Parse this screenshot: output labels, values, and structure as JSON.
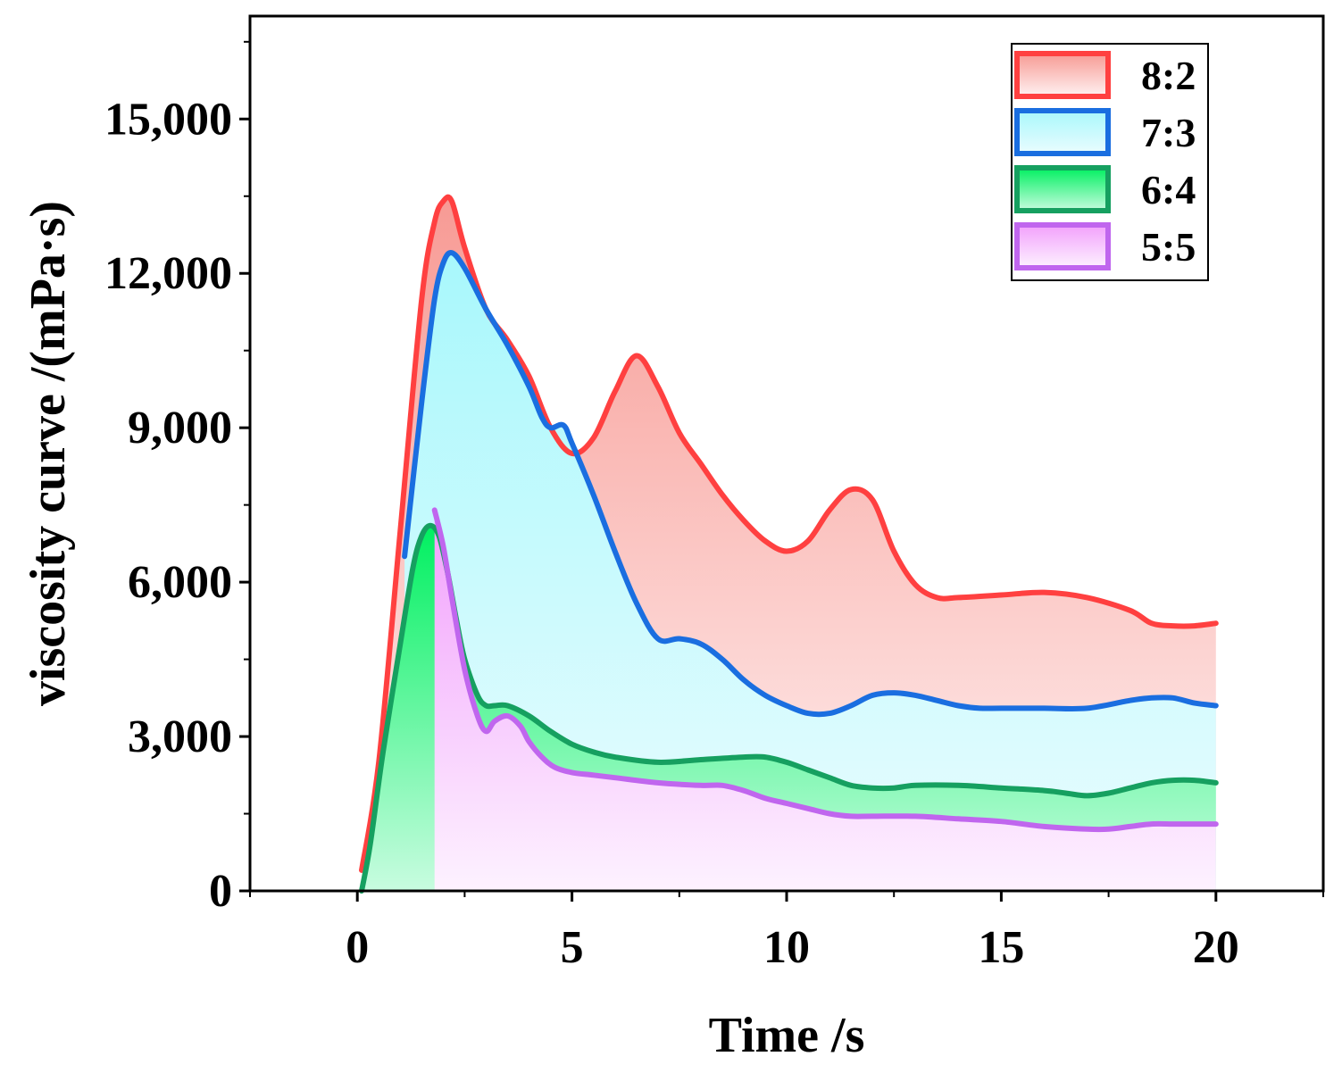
{
  "chart_data": {
    "type": "area",
    "title": "",
    "xlabel": "Time /s",
    "ylabel": "viscosity curve  /(mPa·s)",
    "xlim": [
      -2.5,
      22.5
    ],
    "ylim": [
      0,
      17000
    ],
    "xticks": [
      0,
      5,
      10,
      15,
      20
    ],
    "xtick_labels": [
      "0",
      "5",
      "10",
      "15",
      "20"
    ],
    "yticks": [
      0,
      3000,
      6000,
      9000,
      12000,
      15000
    ],
    "ytick_labels": [
      "0",
      "3,000",
      "6,000",
      "9,000",
      "12,000",
      "15,000"
    ],
    "legend_position": "top-right",
    "series": [
      {
        "name": "8:2",
        "color": "#ff4040",
        "fill_top": "#f79a94",
        "fill_bottom": "#fff2f2",
        "x": [
          0.1,
          0.5,
          1.0,
          1.5,
          1.8,
          2.0,
          2.2,
          2.5,
          3.0,
          3.5,
          4.0,
          4.5,
          5.0,
          5.5,
          6.0,
          6.5,
          7.0,
          7.5,
          8.0,
          8.5,
          9.0,
          9.5,
          10.0,
          10.5,
          11.0,
          11.5,
          12.0,
          12.5,
          13.0,
          13.5,
          14.0,
          15.0,
          16.0,
          17.0,
          18.0,
          18.5,
          19.0,
          19.5,
          20.0
        ],
        "values": [
          400,
          2500,
          7000,
          11500,
          13000,
          13400,
          13400,
          12500,
          11300,
          10700,
          10000,
          9000,
          8500,
          8800,
          9700,
          10400,
          9800,
          8900,
          8300,
          7700,
          7200,
          6800,
          6600,
          6800,
          7400,
          7800,
          7600,
          6600,
          5950,
          5700,
          5700,
          5750,
          5800,
          5700,
          5450,
          5200,
          5150,
          5150,
          5200
        ]
      },
      {
        "name": "7:3",
        "color": "#1a6ee0",
        "fill_top": "#a8f8fc",
        "fill_bottom": "#eafcfe",
        "x": [
          1.1,
          1.5,
          1.8,
          2.0,
          2.2,
          2.5,
          3.0,
          3.5,
          4.0,
          4.3,
          4.5,
          4.8,
          5.0,
          5.5,
          6.0,
          6.5,
          7.0,
          7.5,
          8.0,
          8.5,
          9.0,
          9.5,
          10.0,
          10.5,
          11.0,
          11.5,
          12.0,
          12.5,
          13.0,
          13.5,
          14.0,
          14.5,
          15.0,
          16.0,
          17.0,
          18.0,
          18.5,
          19.0,
          19.5,
          20.0
        ],
        "values": [
          6500,
          9500,
          11500,
          12200,
          12400,
          12100,
          11300,
          10600,
          9800,
          9200,
          9000,
          9050,
          8700,
          7700,
          6600,
          5600,
          4900,
          4900,
          4800,
          4500,
          4100,
          3800,
          3600,
          3450,
          3450,
          3600,
          3800,
          3850,
          3800,
          3700,
          3600,
          3550,
          3550,
          3550,
          3550,
          3700,
          3750,
          3750,
          3650,
          3600
        ]
      },
      {
        "name": "6:4",
        "color": "#16a060",
        "fill_top": "#00f060",
        "fill_bottom": "#c8fce0",
        "x": [
          0.1,
          0.3,
          0.6,
          1.0,
          1.3,
          1.5,
          1.7,
          1.9,
          2.1,
          2.3,
          2.5,
          2.8,
          3.0,
          3.2,
          3.5,
          4.0,
          4.5,
          5.0,
          5.5,
          6.0,
          7.0,
          8.0,
          9.0,
          9.5,
          10.0,
          10.5,
          11.0,
          11.5,
          12.0,
          12.5,
          13.0,
          14.0,
          15.0,
          16.0,
          16.5,
          17.0,
          17.5,
          18.0,
          18.5,
          19.0,
          19.5,
          20.0
        ],
        "values": [
          0,
          900,
          2700,
          4800,
          6300,
          6900,
          7100,
          6900,
          6200,
          5300,
          4500,
          3800,
          3600,
          3600,
          3600,
          3400,
          3100,
          2850,
          2700,
          2600,
          2500,
          2550,
          2600,
          2600,
          2500,
          2350,
          2200,
          2050,
          2000,
          2000,
          2050,
          2050,
          2000,
          1950,
          1900,
          1850,
          1900,
          2000,
          2100,
          2150,
          2150,
          2100
        ]
      },
      {
        "name": "5:5",
        "color": "#c066ee",
        "fill_top": "#f2a0fc",
        "fill_bottom": "#fdf2ff",
        "x": [
          1.8,
          2.0,
          2.2,
          2.5,
          2.8,
          3.0,
          3.2,
          3.5,
          3.8,
          4.0,
          4.3,
          4.6,
          5.0,
          5.5,
          6.0,
          7.0,
          8.0,
          8.5,
          9.0,
          9.5,
          10.0,
          10.5,
          11.0,
          11.5,
          12.0,
          13.0,
          14.0,
          15.0,
          16.0,
          17.0,
          17.5,
          18.0,
          18.5,
          19.0,
          19.5,
          20.0
        ],
        "values": [
          7400,
          6700,
          5700,
          4300,
          3400,
          3100,
          3300,
          3400,
          3200,
          2900,
          2600,
          2400,
          2300,
          2250,
          2200,
          2100,
          2050,
          2050,
          1950,
          1800,
          1700,
          1600,
          1500,
          1450,
          1450,
          1450,
          1400,
          1350,
          1250,
          1200,
          1200,
          1250,
          1300,
          1300,
          1300,
          1300
        ]
      }
    ]
  }
}
